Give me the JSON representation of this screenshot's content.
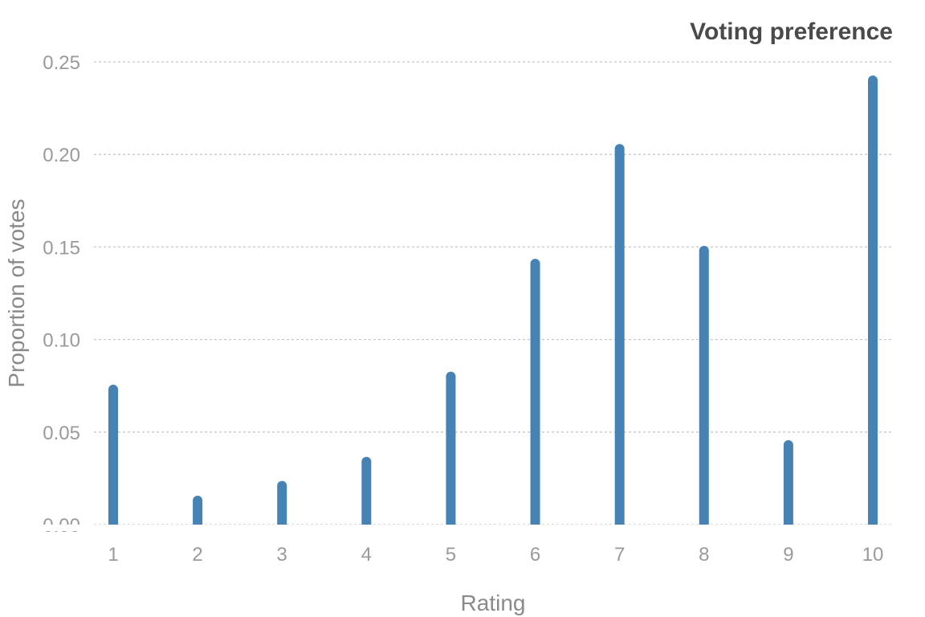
{
  "chart_data": {
    "type": "bar",
    "title": "Voting preference",
    "xlabel": "Rating",
    "ylabel": "Proportion of votes",
    "categories": [
      "1",
      "2",
      "3",
      "4",
      "5",
      "6",
      "7",
      "8",
      "9",
      "10"
    ],
    "values": [
      0.073,
      0.013,
      0.021,
      0.034,
      0.08,
      0.141,
      0.203,
      0.148,
      0.043,
      0.24
    ],
    "ylim": [
      0,
      0.25
    ],
    "yticks": [
      "0.00",
      "0.05",
      "0.10",
      "0.15",
      "0.20",
      "0.25"
    ],
    "grid": "horizontal dashed",
    "legend": "none",
    "bar_color": "#4682b4"
  }
}
